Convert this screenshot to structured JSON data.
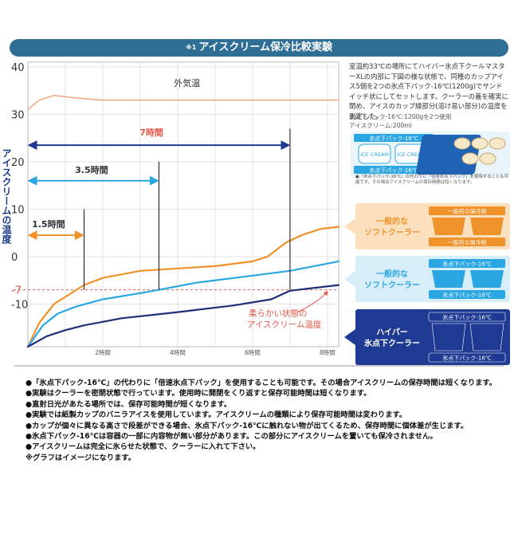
{
  "header": {
    "sup": "※1",
    "title": "アイスクリーム保冷比較実験"
  },
  "description": "室温約33℃の場所にてハイパー氷点下クールマスターXLの内部に下図の様な状態で、同種のカップアイス5個を2つの氷点下パック-16℃(1200g)でサンドイッチ状にしてセットします。クーラーの蓋を確実に閉め、アイスのカップ縁部分(溶け易い部分)の温度を測定した。",
  "spec": {
    "line1": "氷点下パック-16℃:1200gを2つ使用",
    "line2": "アイスクリーム:200ml",
    "pack_label": "氷点下パック-16℃",
    "ice_label": "ICE CREAM",
    "small_note": "●「氷点下パック-16℃」の代わりに「倍速氷点下パック」を使用することも可能です。その場合アイスクリームの保存時間は短くなります。"
  },
  "legend": [
    {
      "label_line1": "一般的な",
      "label_line2": "ソフトクーラー",
      "pack": "一般的な保冷剤",
      "color": "#f0922a",
      "light": "#fbe0bd",
      "text": "#f0922a"
    },
    {
      "label_line1": "一般的な",
      "label_line2": "ソフトクーラー",
      "pack": "氷点下パック-16℃",
      "color": "#2aa7e3",
      "light": "#d7eef9",
      "text": "#2aa7e3"
    },
    {
      "label_line1": "ハイパー",
      "label_line2": "氷点下クーラー",
      "pack": "氷点下パック-16℃",
      "color": "#1f3a93",
      "light": "#1f3a93",
      "text": "#ffffff"
    }
  ],
  "annotations": {
    "outside_temp": "外気温",
    "soft_state_line1": "柔らかい状態の",
    "soft_state_line2": "アイスクリーム温度",
    "arrow_7h": "7時間",
    "arrow_3_5h": "3.5時間",
    "arrow_1_5h": "1.5時間"
  },
  "chart_data": {
    "type": "line",
    "ylabel": "アイスクリームの温度",
    "xlabel": "",
    "ylim": [
      -19,
      41
    ],
    "xlim": [
      0,
      8.3
    ],
    "yticks": [
      40,
      30,
      20,
      10,
      0,
      -10
    ],
    "highlight_tick": "-7",
    "xticks": [
      {
        "value": 2,
        "label": "2時間"
      },
      {
        "value": 4,
        "label": "4時間"
      },
      {
        "value": 6,
        "label": "6時間"
      },
      {
        "value": 8,
        "label": "8時間"
      }
    ],
    "threshold": -7,
    "series": [
      {
        "name": "外気温",
        "color": "#f0a07a",
        "x": [
          0,
          0.3,
          0.7,
          1.2,
          2,
          4,
          6,
          8,
          8.3
        ],
        "y": [
          31,
          33,
          34,
          33.5,
          33,
          33,
          33,
          33,
          33
        ]
      },
      {
        "name": "一般的なソフトクーラー",
        "color": "#f0922a",
        "x": [
          0,
          0.3,
          0.7,
          1.0,
          1.5,
          2.0,
          3.0,
          4.0,
          5.0,
          6.0,
          6.4,
          6.9,
          7.3,
          7.8,
          8.3
        ],
        "y": [
          -19,
          -14,
          -10,
          -8.5,
          -6,
          -4.5,
          -3,
          -2.5,
          -2,
          -1,
          0,
          3,
          4.5,
          5.8,
          6.3
        ]
      },
      {
        "name": "一般的なソフトクーラー(氷点下パック)",
        "color": "#2aa7e3",
        "x": [
          0,
          0.4,
          0.8,
          1.3,
          2.0,
          3.0,
          3.5,
          4.5,
          6.0,
          7.0,
          8.3
        ],
        "y": [
          -19,
          -14.5,
          -12,
          -10.5,
          -9,
          -7.7,
          -7,
          -5.5,
          -4,
          -3,
          -1
        ]
      },
      {
        "name": "ハイパー氷点下クーラー",
        "color": "#1f2f7a",
        "x": [
          0,
          0.5,
          1.0,
          1.5,
          2.5,
          4.0,
          5.5,
          6.5,
          7.0,
          8.3
        ],
        "y": [
          -19,
          -16.8,
          -15.5,
          -14.5,
          -13,
          -11.7,
          -10.3,
          -9,
          -7.2,
          -6
        ]
      }
    ],
    "markers": [
      {
        "label": "1.5時間",
        "x_start": 0,
        "x_end": 1.5,
        "y": 4.5,
        "line_top": 10,
        "color": "#f0922a"
      },
      {
        "label": "3.5時間",
        "x_start": 0,
        "x_end": 3.5,
        "y": 16,
        "line_top": 20,
        "color": "#2aa7e3"
      },
      {
        "label": "7時間",
        "x_start": 0,
        "x_end": 7,
        "y": 23.5,
        "line_top": 27,
        "color": "#1f3a93"
      }
    ]
  },
  "notes": [
    "●「氷点下パック-16℃」の代わりに「倍速氷点下パック」を使用することも可能です。その場合アイスクリームの保存時間は短くなります。",
    "●実験はクーラーを密閉状態で行っています。使用時に開閉をくり返すと保存可能時間は短くなります。",
    "●直射日光があたる場所では、保存可能時間が短くなります。",
    "●実験では紙製カップのバニラアイスを使用しています。アイスクリームの種類により保存可能時間は変わります。",
    "●カップが個々に異なる高さで段差ができる場合、氷点下パック-16℃に触れない物が出てくるため、保存時間に個体差が生じます。",
    "●氷点下パック-16℃は容器の一部に内容物が無い部分があります。この部分にアイスクリームを置いても保冷されません。",
    "●アイスクリームは完全に氷らせた状態で、クーラーに入れて下さい。",
    "※グラフはイメージになります。"
  ]
}
